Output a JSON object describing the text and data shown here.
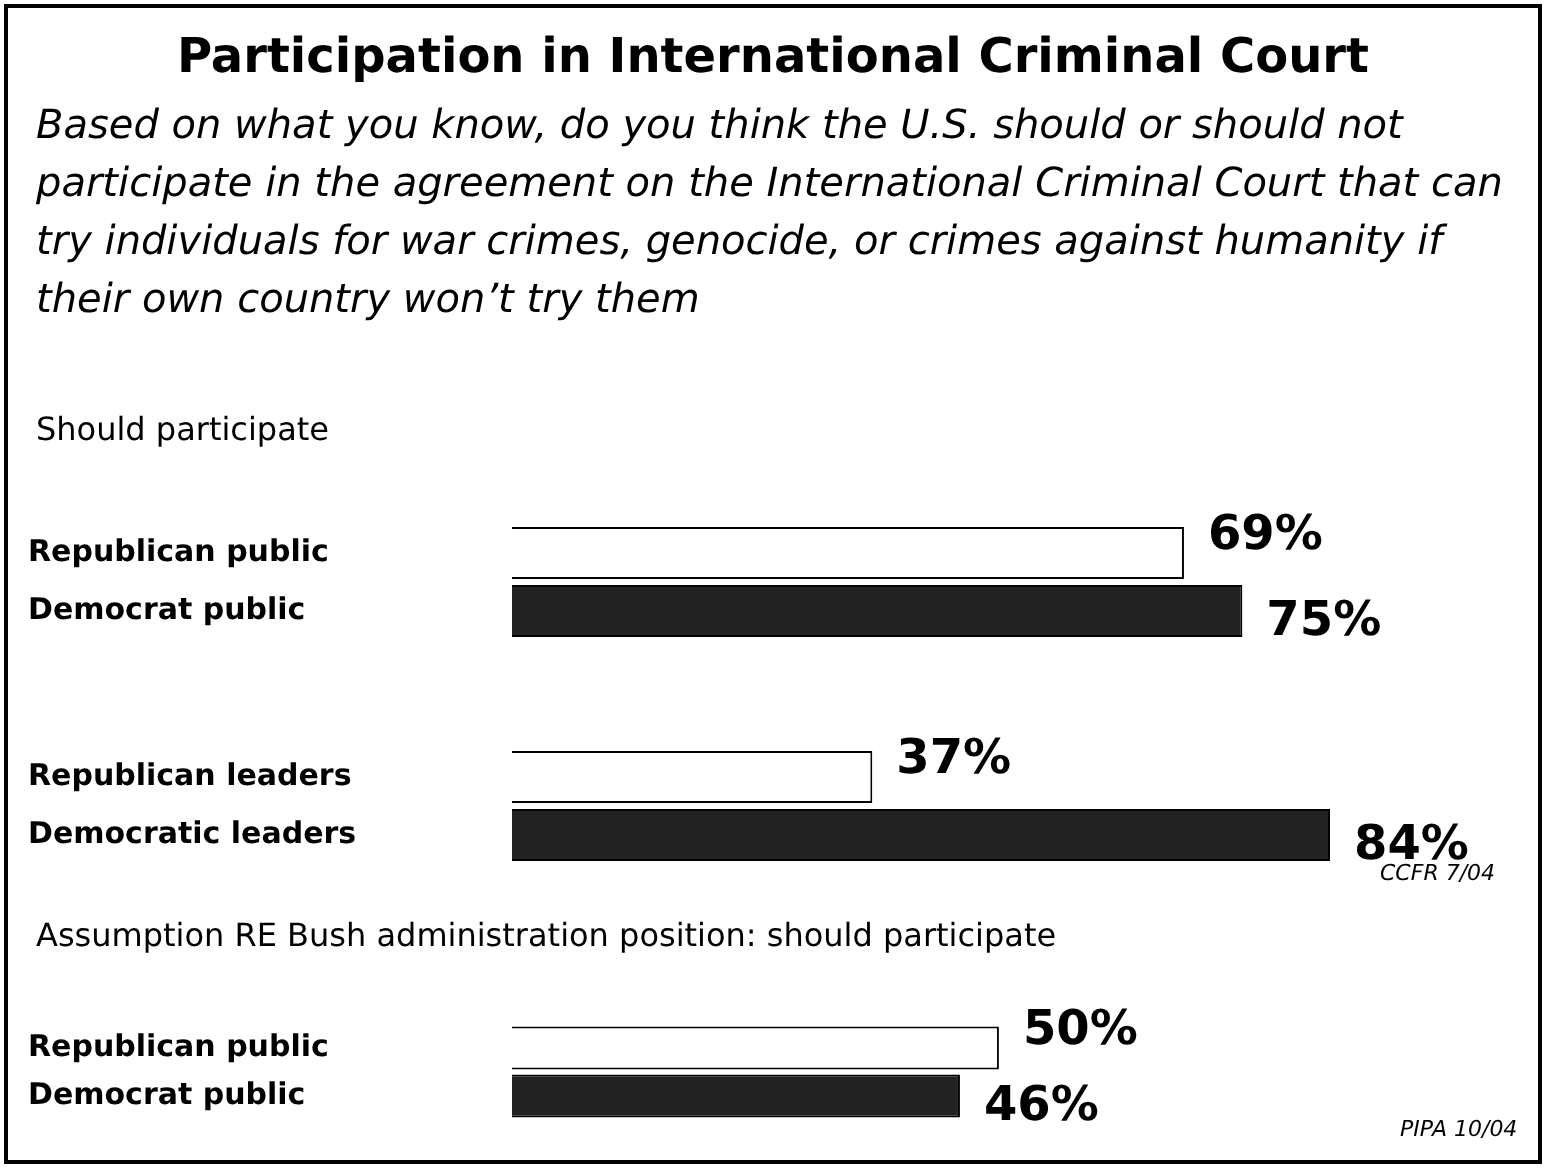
{
  "chart_data": [
    {
      "type": "bar",
      "orientation": "horizontal",
      "title": "Participation in International Criminal Court",
      "subtitle": "Based on what you know, do you think the U.S. should or should not participate in the agreement on the International Criminal Court that can try individuals for war crimes, genocide, or crimes against humanity if their own country won’t try them",
      "annotations": [
        "Should participate"
      ],
      "categories": [
        "Republican public",
        "Democrat public"
      ],
      "values": [
        69,
        75
      ],
      "colors": [
        "#ffffff",
        "#222222"
      ],
      "value_labels": [
        "69%",
        "75%"
      ],
      "tick_labels": "y",
      "legend": false
    },
    {
      "type": "bar",
      "orientation": "horizontal",
      "annotations": [
        "CCFR 7/04"
      ],
      "categories": [
        "Republican leaders",
        "Democratic leaders"
      ],
      "values": [
        37,
        84
      ],
      "colors": [
        "#ffffff",
        "#222222"
      ],
      "value_labels": [
        "37%",
        "84%"
      ],
      "tick_labels": "y",
      "legend": false
    },
    {
      "type": "bar",
      "orientation": "horizontal",
      "annotations": [
        "Assumption RE Bush administration position: should participate",
        "PIPA 10/04"
      ],
      "categories": [
        "Republican public",
        "Democrat public"
      ],
      "values": [
        50,
        46
      ],
      "colors": [
        "#ffffff",
        "#222222"
      ],
      "value_labels": [
        "50%",
        "46%"
      ],
      "tick_labels": "y",
      "legend": false
    }
  ]
}
